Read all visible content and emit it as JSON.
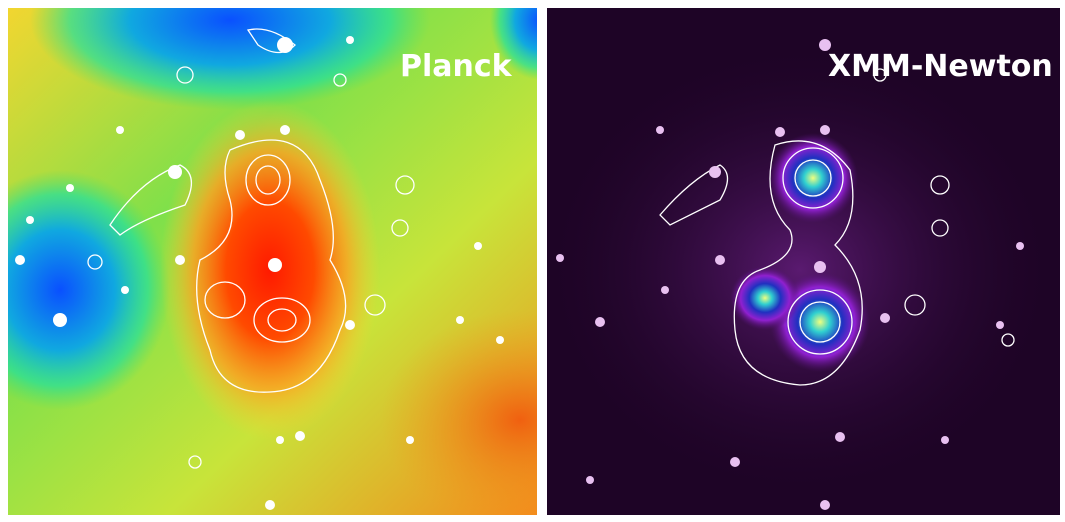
{
  "panels": [
    {
      "label": "Planck"
    },
    {
      "label": "XMM-Newton"
    }
  ]
}
